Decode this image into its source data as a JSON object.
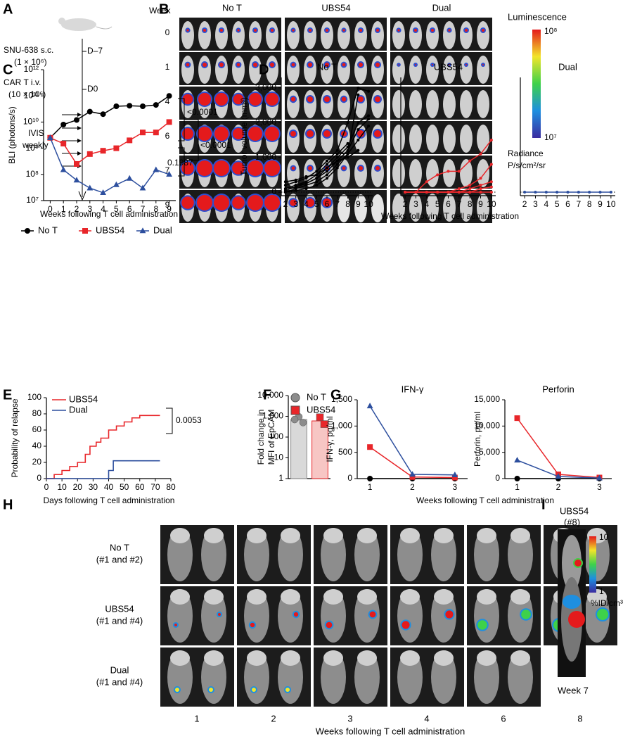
{
  "panel_labels": [
    "A",
    "B",
    "C",
    "D",
    "E",
    "F",
    "G",
    "H",
    "I"
  ],
  "timeline": {
    "events": [
      {
        "label": [
          "SNU-638 s.c.",
          "(1 × 10⁶)"
        ],
        "day": "D–7"
      },
      {
        "label": [
          "CAR T i.v.",
          "(10 × 10⁶)"
        ],
        "day": "D0"
      },
      {
        "label": [
          "IVIS",
          "weekly"
        ]
      }
    ]
  },
  "imaging": {
    "row_header": "Week",
    "columns": [
      "No T",
      "UBS54",
      "Dual"
    ],
    "rows": [
      "0",
      "1",
      "4",
      "6",
      "7",
      "9"
    ],
    "scale_title": "Luminescence",
    "scale_max": "10⁸",
    "scale_min": "10⁷",
    "units": [
      "Radiance",
      "P/s/cm²/sr"
    ]
  },
  "pet": {
    "rows": [
      [
        "No T",
        "(#1 and #2)"
      ],
      [
        "UBS54",
        "(#1 and #4)"
      ],
      [
        "Dual",
        "(#1 and #4)"
      ]
    ],
    "columns": [
      "1",
      "2",
      "3",
      "4",
      "6",
      "8"
    ],
    "xlabel": "Weeks following T cell administration"
  },
  "pet_inset": {
    "title": [
      "UBS54",
      "(#8)"
    ],
    "scale_max": "10",
    "scale_min": "1",
    "units": "%ID/cm³",
    "caption": "Week 7"
  },
  "chart_data": [
    {
      "type": "line",
      "log_scale": true,
      "ylabel": "BLI (photons/s)",
      "xlabel": "Weeks following T cell administration",
      "x": [
        0,
        1,
        2,
        3,
        4,
        5,
        6,
        7,
        8,
        9
      ],
      "xlim": [
        -0.5,
        9.5
      ],
      "xticks": [
        0,
        1,
        2,
        3,
        4,
        5,
        6,
        7,
        8,
        9
      ],
      "ylim": [
        10000000,
        1000000000000
      ],
      "yticks": [
        {
          "value": 10000000,
          "label": "10⁷"
        },
        {
          "value": 100000000,
          "label": "10⁸"
        },
        {
          "value": 1000000000,
          "label": "10⁹"
        },
        {
          "value": 10000000000,
          "label": "10¹⁰"
        },
        {
          "value": 100000000000,
          "label": "10¹¹"
        },
        {
          "value": 1000000000000,
          "label": "10¹²"
        }
      ],
      "legend": "bottom",
      "series": [
        {
          "name": "No T",
          "color": "#000000",
          "marker": "circle",
          "values": [
            2500000000,
            8000000000,
            12000000000,
            25000000000,
            20000000000,
            40000000000,
            42000000000,
            40000000000,
            45000000000,
            100000000000
          ]
        },
        {
          "name": "UBS54",
          "color": "#e8262a",
          "marker": "square",
          "values": [
            2500000000,
            1500000000,
            250000000,
            600000000,
            800000000,
            1000000000,
            2000000000,
            4000000000,
            4000000000,
            10000000000
          ]
        },
        {
          "name": "Dual",
          "color": "#2d4f9e",
          "marker": "triangle",
          "values": [
            2500000000,
            150000000,
            60000000,
            30000000,
            20000000,
            40000000,
            70000000,
            30000000,
            150000000,
            100000000
          ]
        }
      ],
      "annotations": [
        "<0.0001",
        "0.1987",
        "<0.0001"
      ]
    },
    {
      "type": "line",
      "title": "No T",
      "ylabel": "Tumor volume (mm³)",
      "zero_line": true,
      "x": [
        2,
        3,
        4,
        5,
        6,
        7,
        8,
        9,
        10
      ],
      "xlim": [
        1.6,
        10.4
      ],
      "xticks": [
        2,
        3,
        4,
        5,
        6,
        7,
        8,
        9,
        10
      ],
      "ylim": [
        -100,
        3300
      ],
      "yticks": [
        0,
        {
          "value": 1000,
          "label": "1,000"
        },
        {
          "value": 2000,
          "label": "2,000"
        },
        {
          "value": 3000,
          "label": "3,000"
        }
      ],
      "series": [
        {
          "color": "#000000",
          "values": [
            200,
            300,
            400,
            600,
            900,
            1200,
            2000,
            3000,
            2900
          ]
        },
        {
          "color": "#000000",
          "values": [
            100,
            200,
            300,
            500,
            700,
            1000,
            1300,
            2000,
            2200
          ]
        },
        {
          "color": "#000000",
          "values": [
            50,
            150,
            250,
            400,
            600,
            900,
            1200,
            1800,
            2100
          ]
        },
        {
          "color": "#000000",
          "values": [
            0,
            100,
            200,
            300,
            500,
            800,
            1100,
            1500,
            1900
          ]
        },
        {
          "color": "#000000",
          "values": [
            100,
            200,
            250,
            400,
            700,
            900,
            1000,
            1200,
            null
          ]
        },
        {
          "color": "#000000",
          "values": [
            0,
            50,
            100,
            200,
            400,
            700,
            1100,
            2800,
            null
          ]
        },
        {
          "color": "#000000",
          "values": [
            300,
            350,
            450,
            500,
            800,
            1100,
            1400,
            null,
            null
          ]
        }
      ]
    },
    {
      "type": "line",
      "title": "UBS54",
      "zero_line": true,
      "xlabel": "Weeks following T cell administration",
      "x": [
        2,
        3,
        4,
        5,
        6,
        7,
        8,
        9,
        10
      ],
      "xlim": [
        1.6,
        10.4
      ],
      "xticks": [
        2,
        3,
        4,
        5,
        6,
        7,
        8,
        9,
        10
      ],
      "ylim": [
        -100,
        3300
      ],
      "series": [
        {
          "color": "#e8262a",
          "values": [
            0,
            0,
            300,
            500,
            600,
            600,
            900,
            1100,
            1500
          ]
        },
        {
          "color": "#e8262a",
          "values": [
            0,
            0,
            0,
            0,
            0,
            100,
            200,
            400,
            800
          ]
        },
        {
          "color": "#e8262a",
          "values": [
            0,
            0,
            0,
            0,
            0,
            0,
            100,
            200,
            300
          ]
        },
        {
          "color": "#e8262a",
          "values": [
            0,
            0,
            0,
            0,
            0,
            0,
            0,
            100,
            150
          ]
        },
        {
          "color": "#e8262a",
          "values": [
            0,
            0,
            0,
            0,
            0,
            0,
            0,
            0,
            0
          ]
        }
      ]
    },
    {
      "type": "line",
      "title": "Dual",
      "zero_line": true,
      "x": [
        2,
        3,
        4,
        5,
        6,
        7,
        8,
        9,
        10
      ],
      "xlim": [
        1.6,
        10.4
      ],
      "xticks": [
        2,
        3,
        4,
        5,
        6,
        7,
        8,
        9,
        10
      ],
      "ylim": [
        -100,
        3300
      ],
      "series": [
        {
          "color": "#2d4f9e",
          "values": [
            0,
            0,
            0,
            0,
            0,
            0,
            0,
            0,
            0
          ]
        }
      ]
    },
    {
      "type": "step",
      "ylabel": "Probability of relapse",
      "xlabel": "Days following T cell administration",
      "xlim": [
        0,
        80
      ],
      "xticks": [
        0,
        10,
        20,
        30,
        40,
        50,
        60,
        70,
        80
      ],
      "ylim": [
        0,
        100
      ],
      "yticks": [
        0,
        20,
        40,
        60,
        80,
        100
      ],
      "legend": "top-left",
      "series": [
        {
          "name": "UBS54",
          "color": "#e8262a",
          "x": [
            0,
            5,
            10,
            15,
            20,
            25,
            28,
            32,
            35,
            40,
            45,
            50,
            55,
            60,
            73
          ],
          "values": [
            0,
            5,
            10,
            15,
            20,
            30,
            40,
            45,
            50,
            60,
            65,
            70,
            75,
            78,
            78
          ]
        },
        {
          "name": "Dual",
          "color": "#2d4f9e",
          "x": [
            0,
            40,
            43,
            73
          ],
          "values": [
            0,
            10,
            22,
            22
          ]
        }
      ],
      "annotations": [
        "0.0053"
      ]
    },
    {
      "type": "bar",
      "log_scale": true,
      "ylabel": [
        "Fold change in",
        "MFI of EpCAM"
      ],
      "legend": "top",
      "ylim": [
        1,
        10000
      ],
      "yticks": [
        1,
        10,
        100,
        {
          "value": 1000,
          "label": "1,000"
        },
        {
          "value": 10000,
          "label": "10,000"
        }
      ],
      "series": [
        {
          "name": "No T",
          "color": "#d9d9d9",
          "marker_color": "#8c8c8c",
          "marker": "circle",
          "values": [
            700
          ],
          "points": [
            950,
            500,
            700
          ]
        },
        {
          "name": "UBS54",
          "color": "#f7c6c4",
          "marker_color": "#e8262a",
          "marker": "square",
          "values": [
            600
          ],
          "points": [
            900,
            420
          ]
        }
      ]
    },
    {
      "type": "line",
      "title": "IFN-γ",
      "ylabel": "IFN-γ, pg/ml",
      "xlabel": "Weeks following T cell administration",
      "x": [
        1,
        2,
        3
      ],
      "xlim": [
        0.7,
        3.3
      ],
      "xticks": [
        1,
        2,
        3
      ],
      "ylim": [
        0,
        1500
      ],
      "yticks": [
        0,
        500,
        {
          "value": 1000,
          "label": "1,000"
        },
        {
          "value": 1500,
          "label": "1,500"
        }
      ],
      "series": [
        {
          "color": "#000000",
          "marker": "circle",
          "values": [
            0,
            0,
            0
          ]
        },
        {
          "color": "#e8262a",
          "marker": "square",
          "values": [
            600,
            30,
            20
          ]
        },
        {
          "color": "#2d4f9e",
          "marker": "triangle",
          "values": [
            1380,
            80,
            70
          ]
        }
      ]
    },
    {
      "type": "line",
      "title": "Perforin",
      "ylabel": "Perforin, pg/ml",
      "x": [
        1,
        2,
        3
      ],
      "xlim": [
        0.7,
        3.3
      ],
      "xticks": [
        1,
        2,
        3
      ],
      "ylim": [
        0,
        15000
      ],
      "yticks": [
        0,
        {
          "value": 5000,
          "label": "5,000"
        },
        {
          "value": 10000,
          "label": "10,000"
        },
        {
          "value": 15000,
          "label": "15,000"
        }
      ],
      "series": [
        {
          "color": "#000000",
          "marker": "circle",
          "values": [
            0,
            0,
            0
          ]
        },
        {
          "color": "#e8262a",
          "marker": "square",
          "values": [
            11500,
            800,
            200
          ]
        },
        {
          "color": "#2d4f9e",
          "marker": "triangle",
          "values": [
            3500,
            400,
            100
          ]
        }
      ]
    }
  ]
}
